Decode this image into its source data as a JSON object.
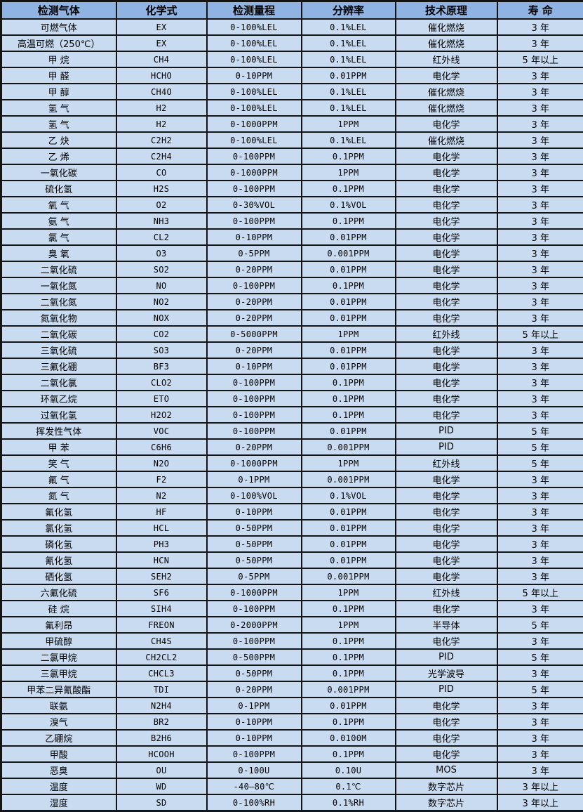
{
  "colors": {
    "header_bg": "#8fb3e2",
    "row_bg": "#c9dbf1",
    "border": "#141414",
    "text": "#000000"
  },
  "table": {
    "columns": [
      "检测气体",
      "化学式",
      "检测量程",
      "分辨率",
      "技术原理",
      "寿 命"
    ],
    "rows": [
      [
        "可燃气体",
        "EX",
        "0-100%LEL",
        "0.1%LEL",
        "催化燃烧",
        "3 年"
      ],
      [
        "高温可燃（250℃）",
        "EX",
        "0-100%LEL",
        "0.1%LEL",
        "催化燃烧",
        "3 年"
      ],
      [
        "甲 烷",
        "CH4",
        "0-100%LEL",
        "0.1%LEL",
        "红外线",
        "5 年以上"
      ],
      [
        "甲 醛",
        "HCHO",
        "0-10PPM",
        "0.01PPM",
        "电化学",
        "3 年"
      ],
      [
        "甲 醇",
        "CH4O",
        "0-100%LEL",
        "0.1%LEL",
        "催化燃烧",
        "3 年"
      ],
      [
        "氢 气",
        "H2",
        "0-100%LEL",
        "0.1%LEL",
        "催化燃烧",
        "3 年"
      ],
      [
        "氢 气",
        "H2",
        "0-1000PPM",
        "1PPM",
        "电化学",
        "3 年"
      ],
      [
        "乙 炔",
        "C2H2",
        "0-100%LEL",
        "0.1%LEL",
        "催化燃烧",
        "3 年"
      ],
      [
        "乙 烯",
        "C2H4",
        "0-100PPM",
        "0.1PPM",
        "电化学",
        "3 年"
      ],
      [
        "一氧化碳",
        "CO",
        "0-1000PPM",
        "1PPM",
        "电化学",
        "3 年"
      ],
      [
        "硫化氢",
        "H2S",
        "0-100PPM",
        "0.1PPM",
        "电化学",
        "3 年"
      ],
      [
        "氧 气",
        "O2",
        "0-30%VOL",
        "0.1%VOL",
        "电化学",
        "3 年"
      ],
      [
        "氨 气",
        "NH3",
        "0-100PPM",
        "0.1PPM",
        "电化学",
        "3 年"
      ],
      [
        "氯 气",
        "CL2",
        "0-10PPM",
        "0.01PPM",
        "电化学",
        "3 年"
      ],
      [
        "臭 氧",
        "O3",
        "0-5PPM",
        "0.001PPM",
        "电化学",
        "3 年"
      ],
      [
        "二氧化硫",
        "SO2",
        "0-20PPM",
        "0.01PPM",
        "电化学",
        "3 年"
      ],
      [
        "一氧化氮",
        "NO",
        "0-100PPM",
        "0.1PPM",
        "电化学",
        "3 年"
      ],
      [
        "二氧化氮",
        "NO2",
        "0-20PPM",
        "0.01PPM",
        "电化学",
        "3 年"
      ],
      [
        "氮氧化物",
        "NOX",
        "0-20PPM",
        "0.01PPM",
        "电化学",
        "3 年"
      ],
      [
        "二氧化碳",
        "CO2",
        "0-5000PPM",
        "1PPM",
        "红外线",
        "5 年以上"
      ],
      [
        "三氧化硫",
        "SO3",
        "0-20PPM",
        "0.01PPM",
        "电化学",
        "3 年"
      ],
      [
        "三氟化硼",
        "BF3",
        "0-10PPM",
        "0.01PPM",
        "电化学",
        "3 年"
      ],
      [
        "二氧化氯",
        "CLO2",
        "0-100PPM",
        "0.1PPM",
        "电化学",
        "3 年"
      ],
      [
        "环氧乙烷",
        "ETO",
        "0-100PPM",
        "0.1PPM",
        "电化学",
        "3 年"
      ],
      [
        "过氧化氢",
        "H2O2",
        "0-100PPM",
        "0.1PPM",
        "电化学",
        "3 年"
      ],
      [
        "挥发性气体",
        "VOC",
        "0-100PPM",
        "0.01PPM",
        "PID",
        "5 年"
      ],
      [
        "甲 苯",
        "C6H6",
        "0-20PPM",
        "0.001PPM",
        "PID",
        "5 年"
      ],
      [
        "笑 气",
        "N2O",
        "0-1000PPM",
        "1PPM",
        "红外线",
        "5 年"
      ],
      [
        "氟 气",
        "F2",
        "0-1PPM",
        "0.001PPM",
        "电化学",
        "3 年"
      ],
      [
        "氮 气",
        "N2",
        "0-100%VOL",
        "0.1%VOL",
        "电化学",
        "3 年"
      ],
      [
        "氟化氢",
        "HF",
        "0-10PPM",
        "0.01PPM",
        "电化学",
        "3 年"
      ],
      [
        "氯化氢",
        "HCL",
        "0-50PPM",
        "0.01PPM",
        "电化学",
        "3 年"
      ],
      [
        "磷化氢",
        "PH3",
        "0-50PPM",
        "0.01PPM",
        "电化学",
        "3 年"
      ],
      [
        "氰化氢",
        "HCN",
        "0-50PPM",
        "0.01PPM",
        "电化学",
        "3 年"
      ],
      [
        "硒化氢",
        "SEH2",
        "0-5PPM",
        "0.001PPM",
        "电化学",
        "3 年"
      ],
      [
        "六氟化硫",
        "SF6",
        "0-1000PPM",
        "1PPM",
        "红外线",
        "5 年以上"
      ],
      [
        "硅 烷",
        "SIH4",
        "0-100PPM",
        "0.1PPM",
        "电化学",
        "3 年"
      ],
      [
        "氟利昂",
        "FREON",
        "0-2000PPM",
        "1PPM",
        "半导体",
        "5 年"
      ],
      [
        "甲硫醇",
        "CH4S",
        "0-100PPM",
        "0.1PPM",
        "电化学",
        "3 年"
      ],
      [
        "二氯甲烷",
        "CH2CL2",
        "0-500PPM",
        "0.1PPM",
        "PID",
        "5 年"
      ],
      [
        "三氯甲烷",
        "CHCL3",
        "0-50PPM",
        "0.1PPM",
        "光学波导",
        "3 年"
      ],
      [
        "甲苯二异氰酸酯",
        "TDI",
        "0-20PPM",
        "0.001PPM",
        "PID",
        "5 年"
      ],
      [
        "联氨",
        "N2H4",
        "0-1PPM",
        "0.01PPM",
        "电化学",
        "3 年"
      ],
      [
        "溴气",
        "BR2",
        "0-10PPM",
        "0.1PPM",
        "电化学",
        "3 年"
      ],
      [
        "乙硼烷",
        "B2H6",
        "0-10PPM",
        "0.0100M",
        "电化学",
        "3 年"
      ],
      [
        "甲酸",
        "HCOOH",
        "0-100PPM",
        "0.1PPM",
        "电化学",
        "3 年"
      ],
      [
        "恶臭",
        "OU",
        "0-100U",
        "0.10U",
        "MOS",
        "3 年"
      ],
      [
        "温度",
        "WD",
        "-40—80℃",
        "0.1℃",
        "数字芯片",
        "3 年以上"
      ],
      [
        "湿度",
        "SD",
        "0-100%RH",
        "0.1%RH",
        "数字芯片",
        "3 年以上"
      ]
    ]
  }
}
